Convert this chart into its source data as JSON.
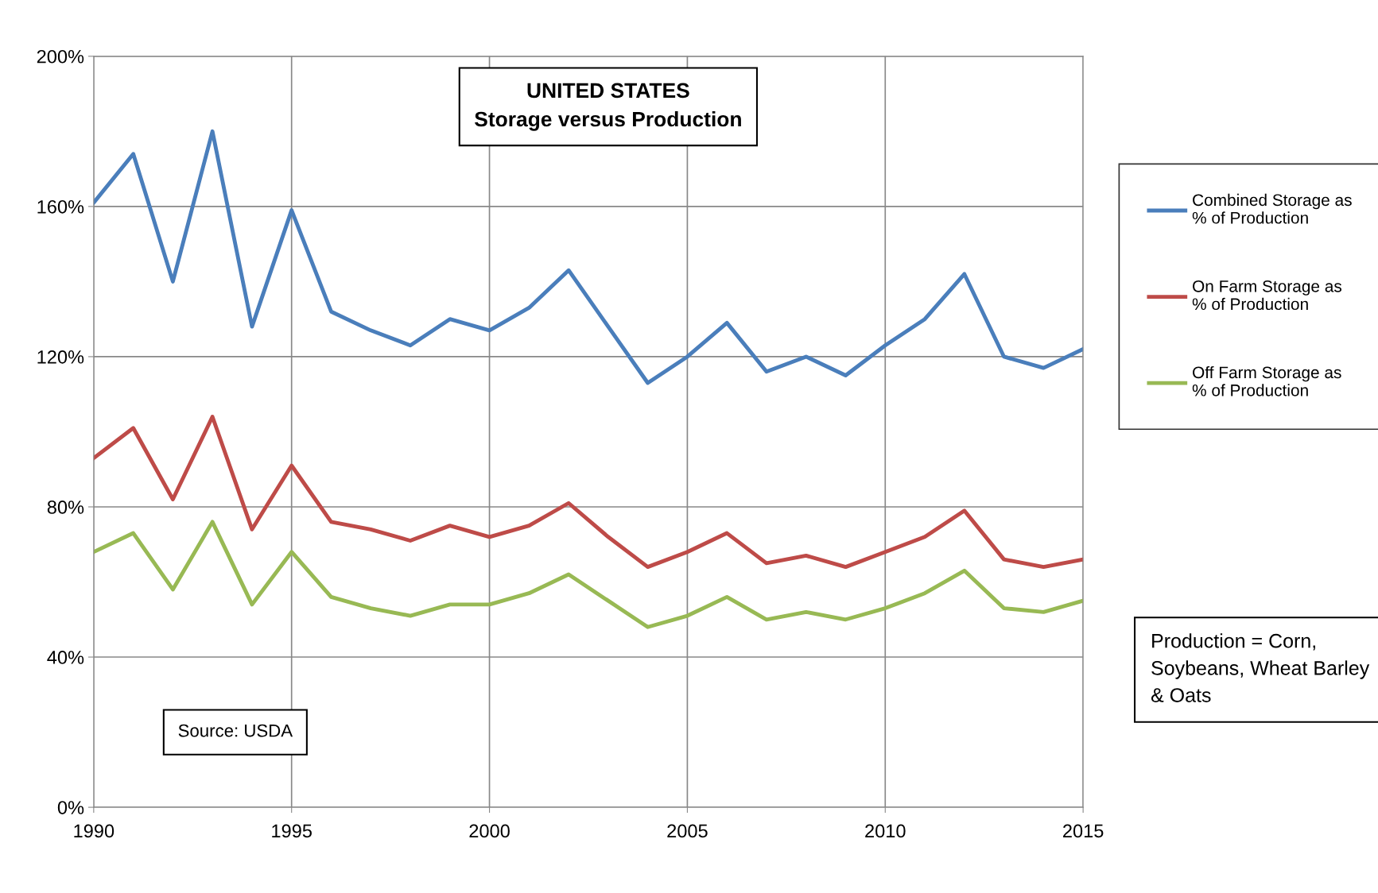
{
  "chart_data": {
    "type": "line",
    "title": "UNITED STATES",
    "subtitle": "Storage versus Production",
    "x": [
      1990,
      1991,
      1992,
      1993,
      1994,
      1995,
      1996,
      1997,
      1998,
      1999,
      2000,
      2001,
      2002,
      2003,
      2004,
      2005,
      2006,
      2007,
      2008,
      2009,
      2010,
      2011,
      2012,
      2013,
      2014,
      2015
    ],
    "series": [
      {
        "name": "Combined Storage as % of Production",
        "color": "#4a7ebb",
        "values": [
          161,
          174,
          140,
          180,
          128,
          159,
          132,
          127,
          123,
          130,
          127,
          133,
          143,
          128,
          113,
          120,
          129,
          116,
          120,
          115,
          123,
          130,
          142,
          120,
          117,
          122
        ]
      },
      {
        "name": "On Farm Storage as % of Production",
        "color": "#be4b48",
        "values": [
          93,
          101,
          82,
          104,
          74,
          91,
          76,
          74,
          71,
          75,
          72,
          75,
          81,
          72,
          64,
          68,
          73,
          65,
          67,
          64,
          68,
          72,
          79,
          66,
          64,
          66
        ]
      },
      {
        "name": "Off Farm Storage as % of Production",
        "color": "#98b954",
        "values": [
          68,
          73,
          58,
          76,
          54,
          68,
          56,
          53,
          51,
          54,
          54,
          57,
          62,
          55,
          48,
          51,
          56,
          50,
          52,
          50,
          53,
          57,
          63,
          53,
          52,
          55
        ]
      }
    ],
    "xlim": [
      1990,
      2015
    ],
    "xticks": [
      1990,
      1995,
      2000,
      2005,
      2010,
      2015
    ],
    "ylim": [
      0,
      200
    ],
    "yticks": [
      {
        "value": 0,
        "label": "0%"
      },
      {
        "value": 40,
        "label": "40%"
      },
      {
        "value": 80,
        "label": "80%"
      },
      {
        "value": 120,
        "label": "120%"
      },
      {
        "value": 160,
        "label": "160%"
      },
      {
        "value": 200,
        "label": "200%"
      }
    ],
    "grid": true,
    "legend": "right",
    "marker": "none",
    "line_style": "solid",
    "annotations": [
      "Source: USDA",
      "Production = Corn, Soybeans, Wheat Barley & Oats"
    ]
  }
}
